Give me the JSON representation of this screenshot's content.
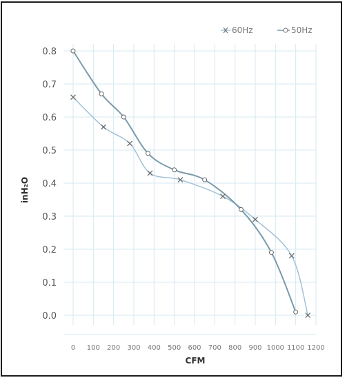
{
  "chart_data": {
    "type": "line",
    "title": "",
    "xlabel": "CFM",
    "ylabel": "inH₂O",
    "xlim": [
      0,
      1200
    ],
    "ylim": [
      0,
      0.8
    ],
    "x_ticks": [
      "0",
      "100",
      "200",
      "300",
      "400",
      "500",
      "600",
      "700",
      "800",
      "900",
      "1000",
      "1100",
      "1200"
    ],
    "y_ticks": [
      "0.8",
      "0.7",
      "0.6",
      "0.5",
      "0.4",
      "0.3",
      "0.2",
      "0.1",
      "0.0"
    ],
    "grid": true,
    "legend_position": "top-right",
    "colors": {
      "series_60hz": "#9fc2d6",
      "series_50hz": "#7a9aaa",
      "grid": "#d6e8f2",
      "frame": "#1c1c1c"
    },
    "series": [
      {
        "name": "60Hz",
        "marker": "x",
        "x": [
          0,
          150,
          280,
          380,
          530,
          740,
          900,
          1080,
          1160
        ],
        "y": [
          0.66,
          0.57,
          0.52,
          0.43,
          0.41,
          0.36,
          0.29,
          0.18,
          0.0
        ]
      },
      {
        "name": "50Hz",
        "marker": "o",
        "x": [
          0,
          140,
          250,
          370,
          500,
          650,
          830,
          980,
          1100
        ],
        "y": [
          0.8,
          0.67,
          0.6,
          0.49,
          0.44,
          0.41,
          0.32,
          0.19,
          0.01
        ]
      }
    ]
  }
}
